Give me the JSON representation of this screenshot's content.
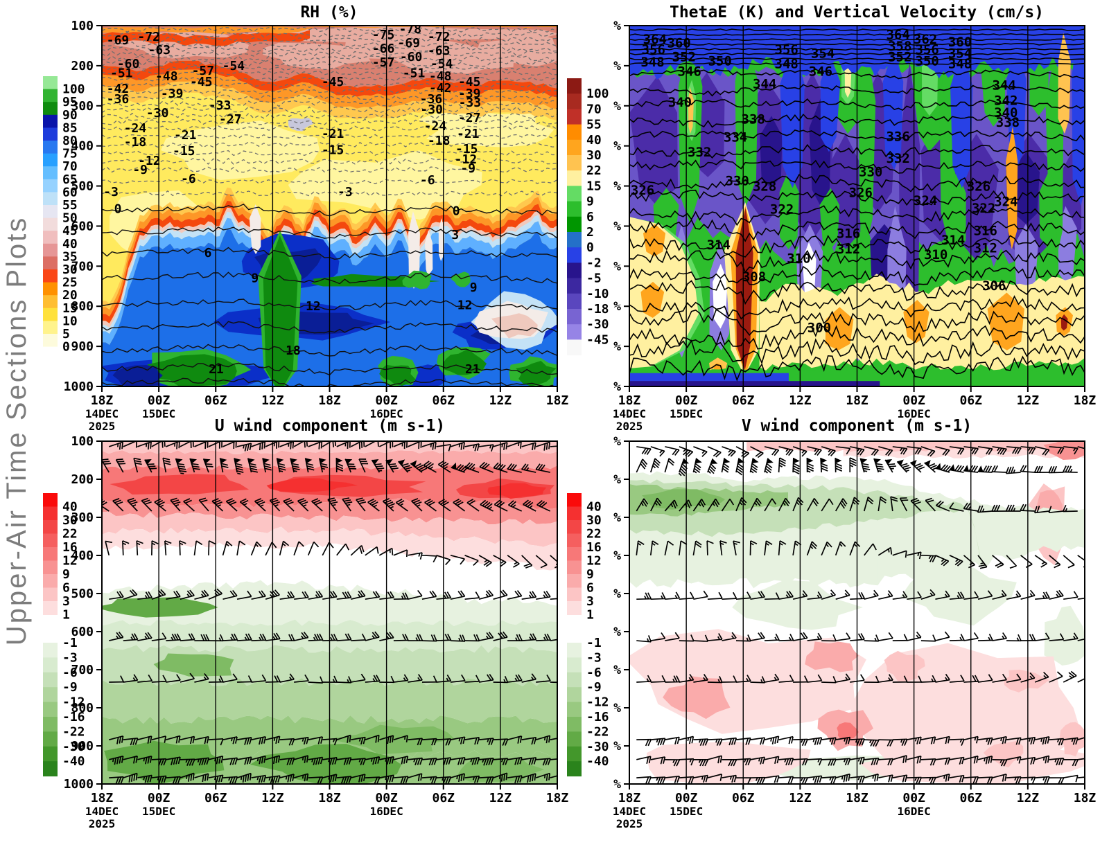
{
  "sidebar": {
    "label": "Upper-Air Time Sections Plots",
    "color": "#7C7C7C"
  },
  "time_axis": {
    "tick_labels": [
      "18Z",
      "00Z",
      "06Z",
      "12Z",
      "18Z",
      "00Z",
      "06Z",
      "12Z",
      "18Z"
    ],
    "dates": [
      {
        "tick": 0,
        "label": "14DEC",
        "year": "2025"
      },
      {
        "tick": 1,
        "label": "15DEC"
      },
      {
        "tick": 5,
        "label": "16DEC"
      }
    ]
  },
  "palette": {
    "rh": {
      "yellow": "#FFEA5E",
      "pale_yellow": "#FFF6A0",
      "salmon": "#D98070",
      "rose": "#E8ACA0",
      "red": "#F4480E",
      "orange": "#FD9727",
      "amber": "#FFC84E",
      "pink_band": "#F2C8BC",
      "white_band": "#F7EFEA",
      "pale_blue": "#C4E2F6",
      "light_blue": "#5FB0FF",
      "mid_blue": "#1D6FE8",
      "deep_blue": "#0B2FC8",
      "navy": "#0A1E96",
      "green_dark": "#0F8A0F",
      "green_mid": "#2FB42F",
      "green_light": "#8CE08C",
      "hole_white": "#F4ECE8",
      "hole_pink": "#EFC9BE"
    },
    "te": {
      "green": "#2DBE2D",
      "green_light": "#64DC64",
      "green_dark": "#009600",
      "slate": "#6A55C8",
      "indigo": "#4B2CA8",
      "periwinkle": "#8C7DE0",
      "royal": "#2841E6",
      "navy": "#28148C",
      "cerulean": "#2470C8",
      "pale_yellow": "#FFF0A0",
      "amber": "#FFC350",
      "orange": "#FFA51E",
      "dark_red": "#9B1B10",
      "white": "#FFFFFF"
    },
    "uv_red": [
      "#FA0A0A",
      "#F53030",
      "#F34646",
      "#F55F5F",
      "#F77878",
      "#F89292",
      "#FAABAB",
      "#FCC5C5",
      "#FDDEDE"
    ],
    "uv_green": [
      "#E7F2E0",
      "#D8EBCF",
      "#C5E0B8",
      "#B0D59D",
      "#99C981",
      "#7FBB64",
      "#62AA46",
      "#43972B",
      "#2A831C"
    ]
  },
  "chart_data": [
    {
      "id": "rh",
      "type": "filled_contour_time_height",
      "title": "RH (%)",
      "x_tick_labels": [
        "18Z",
        "00Z",
        "06Z",
        "12Z",
        "18Z",
        "00Z",
        "06Z",
        "12Z",
        "18Z"
      ],
      "y_tick_labels": [
        "100",
        "200",
        "300",
        "400",
        "500",
        "600",
        "700",
        "800",
        "900",
        "1000"
      ],
      "y_axis": "pressure_hPa",
      "colorbar": {
        "labels": [
          "100",
          "95",
          "90",
          "85",
          "80",
          "75",
          "70",
          "65",
          "60",
          "55",
          "50",
          "45",
          "40",
          "35",
          "30",
          "25",
          "20",
          "15",
          "10",
          "5",
          "0"
        ],
        "colors": [
          "#96E896",
          "#32B432",
          "#0F8C0F",
          "#0A14AA",
          "#1E3CDC",
          "#2878F0",
          "#28A0FF",
          "#64BEFF",
          "#96D2FF",
          "#BEE1F8",
          "#E6E6F2",
          "#F2DCDC",
          "#F0BEBE",
          "#E69696",
          "#DC6E64",
          "#FA4616",
          "#FF9100",
          "#FFBE32",
          "#FFE13C",
          "#FFF38C",
          "#FDFBDC",
          "#FFFFFF"
        ]
      },
      "dashed_contour_labels": [
        [
          -69,
          0.035,
          0.04
        ],
        [
          -72,
          0.103,
          0.031
        ],
        [
          -63,
          0.126,
          0.067
        ],
        [
          -60,
          0.058,
          0.106
        ],
        [
          -57,
          0.222,
          0.125
        ],
        [
          -54,
          0.289,
          0.111
        ],
        [
          -51,
          0.043,
          0.131
        ],
        [
          -48,
          0.142,
          0.14
        ],
        [
          -45,
          0.218,
          0.155
        ],
        [
          -42,
          0.035,
          0.175
        ],
        [
          -39,
          0.154,
          0.188
        ],
        [
          -36,
          0.035,
          0.203
        ],
        [
          -33,
          0.259,
          0.221
        ],
        [
          -30,
          0.122,
          0.242
        ],
        [
          -27,
          0.282,
          0.259
        ],
        [
          -24,
          0.073,
          0.284
        ],
        [
          -21,
          0.183,
          0.303
        ],
        [
          -18,
          0.073,
          0.322
        ],
        [
          -15,
          0.18,
          0.347
        ],
        [
          -12,
          0.104,
          0.374
        ],
        [
          -9,
          0.084,
          0.399
        ],
        [
          -6,
          0.19,
          0.424
        ],
        [
          -3,
          0.02,
          0.461
        ],
        [
          -75,
          0.618,
          0.025
        ],
        [
          -78,
          0.677,
          0.01
        ],
        [
          -66,
          0.618,
          0.063
        ],
        [
          -69,
          0.674,
          0.048
        ],
        [
          -72,
          0.74,
          0.031
        ],
        [
          -57,
          0.618,
          0.102
        ],
        [
          -60,
          0.679,
          0.086
        ],
        [
          -63,
          0.74,
          0.069
        ],
        [
          -51,
          0.685,
          0.131
        ],
        [
          -54,
          0.746,
          0.106
        ],
        [
          -48,
          0.743,
          0.14
        ],
        [
          -45,
          0.507,
          0.155
        ],
        [
          -45,
          0.807,
          0.155
        ],
        [
          -42,
          0.743,
          0.173
        ],
        [
          -39,
          0.807,
          0.188
        ],
        [
          -36,
          0.723,
          0.203
        ],
        [
          -33,
          0.808,
          0.213
        ],
        [
          -30,
          0.724,
          0.232
        ],
        [
          -27,
          0.807,
          0.255
        ],
        [
          -24,
          0.732,
          0.278
        ],
        [
          -21,
          0.804,
          0.299
        ],
        [
          -21,
          0.507,
          0.299
        ],
        [
          -18,
          0.74,
          0.319
        ],
        [
          -15,
          0.507,
          0.345
        ],
        [
          -15,
          0.801,
          0.342
        ],
        [
          -12,
          0.799,
          0.37
        ],
        [
          -9,
          0.804,
          0.395
        ],
        [
          -6,
          0.715,
          0.428
        ],
        [
          -3,
          0.534,
          0.461
        ]
      ],
      "solid_contour_labels": [
        [
          0,
          0.035,
          0.508
        ],
        [
          0,
          0.778,
          0.513
        ],
        [
          3,
          0.776,
          0.58
        ],
        [
          6,
          0.233,
          0.63
        ],
        [
          9,
          0.336,
          0.7
        ],
        [
          9,
          0.816,
          0.726
        ],
        [
          12,
          0.464,
          0.777
        ],
        [
          12,
          0.797,
          0.774
        ],
        [
          18,
          0.42,
          0.9
        ],
        [
          21,
          0.251,
          0.952
        ],
        [
          21,
          0.814,
          0.952
        ]
      ]
    },
    {
      "id": "thetae",
      "type": "filled_contour_time_height",
      "title": "ThetaE (K) and Vertical Velocity (cm/s)",
      "x_tick_labels": [
        "18Z",
        "00Z",
        "06Z",
        "12Z",
        "18Z",
        "00Z",
        "06Z",
        "12Z",
        "18Z"
      ],
      "y_tick_labels": [
        "%",
        "%",
        "%",
        "%",
        "%",
        "%",
        "%",
        "%",
        "%",
        "%"
      ],
      "y_axis": "pressure_hPa",
      "colorbar": {
        "labels": [
          "100",
          "70",
          "55",
          "40",
          "30",
          "22",
          "15",
          "9",
          "6",
          "2",
          "0",
          "-2",
          "-5",
          "-10",
          "-18",
          "-30",
          "-45"
        ],
        "colors": [
          "#8C1A14",
          "#A82A20",
          "#C03028",
          "#FF8C00",
          "#FFA51E",
          "#FFC350",
          "#FFF0A0",
          "#64DC64",
          "#2DBE2D",
          "#009600",
          "#2470C8",
          "#2841E6",
          "#28148C",
          "#3C28A0",
          "#5A46BE",
          "#7864D2",
          "#9684E6",
          "#F8F8F8"
        ]
      },
      "contour_labels": [
        [
          364,
          0.056,
          0.036
        ],
        [
          360,
          0.109,
          0.047
        ],
        [
          356,
          0.053,
          0.065
        ],
        [
          352,
          0.12,
          0.085
        ],
        [
          348,
          0.051,
          0.1
        ],
        [
          350,
          0.199,
          0.097
        ],
        [
          346,
          0.132,
          0.126
        ],
        [
          344,
          0.297,
          0.16
        ],
        [
          340,
          0.111,
          0.211
        ],
        [
          338,
          0.272,
          0.258
        ],
        [
          334,
          0.233,
          0.308
        ],
        [
          332,
          0.154,
          0.349
        ],
        [
          330,
          0.237,
          0.429
        ],
        [
          328,
          0.297,
          0.444
        ],
        [
          326,
          0.029,
          0.455
        ],
        [
          322,
          0.335,
          0.508
        ],
        [
          316,
          0.481,
          0.575
        ],
        [
          312,
          0.481,
          0.618
        ],
        [
          310,
          0.372,
          0.644
        ],
        [
          314,
          0.196,
          0.607
        ],
        [
          308,
          0.274,
          0.695
        ],
        [
          300,
          0.417,
          0.836
        ],
        [
          326,
          0.508,
          0.462
        ],
        [
          330,
          0.53,
          0.404
        ],
        [
          332,
          0.59,
          0.367
        ],
        [
          336,
          0.59,
          0.306
        ],
        [
          324,
          0.65,
          0.484
        ],
        [
          306,
          0.801,
          0.72
        ],
        [
          310,
          0.673,
          0.633
        ],
        [
          314,
          0.711,
          0.593
        ],
        [
          316,
          0.782,
          0.567
        ],
        [
          312,
          0.782,
          0.615
        ],
        [
          322,
          0.778,
          0.505
        ],
        [
          324,
          0.827,
          0.487
        ],
        [
          364,
          0.59,
          0.024
        ],
        [
          362,
          0.65,
          0.036
        ],
        [
          360,
          0.726,
          0.044
        ],
        [
          358,
          0.594,
          0.056
        ],
        [
          356,
          0.654,
          0.065
        ],
        [
          354,
          0.726,
          0.076
        ],
        [
          352,
          0.594,
          0.085
        ],
        [
          350,
          0.654,
          0.097
        ],
        [
          348,
          0.726,
          0.105
        ],
        [
          344,
          0.823,
          0.164
        ],
        [
          342,
          0.827,
          0.206
        ],
        [
          340,
          0.827,
          0.24
        ],
        [
          338,
          0.831,
          0.267
        ],
        [
          356,
          0.345,
          0.065
        ],
        [
          354,
          0.425,
          0.076
        ],
        [
          348,
          0.345,
          0.105
        ],
        [
          346,
          0.42,
          0.126
        ],
        [
          326,
          0.767,
          0.444
        ]
      ]
    },
    {
      "id": "u_wind",
      "type": "shaded_barb_time_height",
      "title": "U wind component (m s-1)",
      "x_tick_labels": [
        "18Z",
        "00Z",
        "06Z",
        "12Z",
        "18Z",
        "00Z",
        "06Z",
        "12Z",
        "18Z"
      ],
      "y_tick_labels": [
        "100",
        "200",
        "300",
        "400",
        "500",
        "600",
        "700",
        "800",
        "900",
        "1000"
      ],
      "colorbar": {
        "red": {
          "labels": [
            "40",
            "30",
            "22",
            "16",
            "12",
            "9",
            "6",
            "3",
            "1"
          ],
          "colors": [
            "#FA0A0A",
            "#F53030",
            "#F34646",
            "#F55F5F",
            "#F77878",
            "#F89292",
            "#FAABAB",
            "#FCC5C5",
            "#FDDEDE"
          ]
        },
        "green": {
          "labels": [
            "-1",
            "-3",
            "-6",
            "-9",
            "-12",
            "-16",
            "-22",
            "-30",
            "-40"
          ],
          "colors": [
            "#E7F2E0",
            "#D8EBCF",
            "#C5E0B8",
            "#B0D59D",
            "#99C981",
            "#7FBB64",
            "#62AA46",
            "#43972B",
            "#2A831C"
          ]
        }
      },
      "barb_rows": [
        {
          "fy": 0.016,
          "a": [
            25,
            20,
            25,
            15,
            10
          ],
          "n": 2,
          "pennant": false,
          "side": 1
        },
        {
          "fy": 0.091,
          "a": [
            115,
            105,
            95,
            150,
            170
          ],
          "n": 3,
          "pennant": true,
          "side": 1
        },
        {
          "fy": 0.204,
          "a": [
            140,
            135,
            130,
            145,
            150
          ],
          "n": 3,
          "pennant": false,
          "side": 1
        },
        {
          "fy": 0.333,
          "a": [
            100,
            80,
            60,
            -20,
            -45
          ],
          "n": 1,
          "pennant": false,
          "side": 1
        },
        {
          "fy": 0.461,
          "a": [
            10,
            15,
            5,
            10,
            5
          ],
          "n": 2,
          "pennant": false,
          "side": -1
        },
        {
          "fy": 0.582,
          "a": [
            8,
            5,
            10,
            5,
            8
          ],
          "n": 2,
          "pennant": false,
          "side": -1
        },
        {
          "fy": 0.703,
          "a": [
            5,
            8,
            3,
            6,
            4
          ],
          "n": 1,
          "pennant": false,
          "side": -1
        },
        {
          "fy": 0.871,
          "a": [
            10,
            8,
            12,
            8,
            10
          ],
          "n": 2,
          "pennant": false,
          "side": 1
        },
        {
          "fy": 0.929,
          "a": [
            8,
            10,
            8,
            10,
            8
          ],
          "n": 3,
          "pennant": false,
          "side": 1
        },
        {
          "fy": 0.982,
          "a": [
            10,
            12,
            8,
            10,
            12
          ],
          "n": 3,
          "pennant": false,
          "side": 1
        }
      ]
    },
    {
      "id": "v_wind",
      "type": "shaded_barb_time_height",
      "title": "V wind component (m s-1)",
      "x_tick_labels": [
        "18Z",
        "00Z",
        "06Z",
        "12Z",
        "18Z",
        "00Z",
        "06Z",
        "12Z",
        "18Z"
      ],
      "y_tick_labels": [
        "%",
        "%",
        "%",
        "%",
        "%",
        "%",
        "%",
        "%",
        "%",
        "%"
      ],
      "colorbar": {
        "red": {
          "labels": [
            "40",
            "30",
            "22",
            "16",
            "12",
            "9",
            "6",
            "3",
            "1"
          ],
          "colors": [
            "#FA0A0A",
            "#F53030",
            "#F34646",
            "#F55F5F",
            "#F77878",
            "#F89292",
            "#FAABAB",
            "#FCC5C5",
            "#FDDEDE"
          ]
        },
        "green": {
          "labels": [
            "-1",
            "-3",
            "-6",
            "-9",
            "-12",
            "-16",
            "-22",
            "-30",
            "-40"
          ],
          "colors": [
            "#E7F2E0",
            "#D8EBCF",
            "#C5E0B8",
            "#B0D59D",
            "#99C981",
            "#7FBB64",
            "#62AA46",
            "#43972B",
            "#2A831C"
          ]
        }
      },
      "barb_rows": [
        {
          "fy": 0.016,
          "a": [
            -15,
            -20,
            -10,
            -15,
            -8
          ],
          "n": 2,
          "pennant": false,
          "side": 1
        },
        {
          "fy": 0.091,
          "a": [
            70,
            80,
            95,
            170,
            185
          ],
          "n": 3,
          "pennant": true,
          "side": 1
        },
        {
          "fy": 0.204,
          "a": [
            55,
            60,
            65,
            175,
            185
          ],
          "n": 2,
          "pennant": false,
          "side": 1
        },
        {
          "fy": 0.333,
          "a": [
            80,
            95,
            60,
            -50,
            -30
          ],
          "n": 1,
          "pennant": false,
          "side": 1
        },
        {
          "fy": 0.461,
          "a": [
            5,
            10,
            8,
            12,
            6
          ],
          "n": 1,
          "pennant": false,
          "side": -1
        },
        {
          "fy": 0.582,
          "a": [
            3,
            6,
            4,
            8,
            5
          ],
          "n": 1,
          "pennant": false,
          "side": -1
        },
        {
          "fy": 0.703,
          "a": [
            4,
            3,
            6,
            4,
            30
          ],
          "n": 1,
          "pennant": false,
          "side": -1
        },
        {
          "fy": 0.871,
          "a": [
            8,
            10,
            6,
            8,
            10
          ],
          "n": 2,
          "pennant": false,
          "side": 1
        },
        {
          "fy": 0.929,
          "a": [
            6,
            8,
            10,
            6,
            8
          ],
          "n": 2,
          "pennant": false,
          "side": 1
        },
        {
          "fy": 0.982,
          "a": [
            8,
            6,
            10,
            8,
            6
          ],
          "n": 2,
          "pennant": false,
          "side": 1
        }
      ]
    }
  ]
}
